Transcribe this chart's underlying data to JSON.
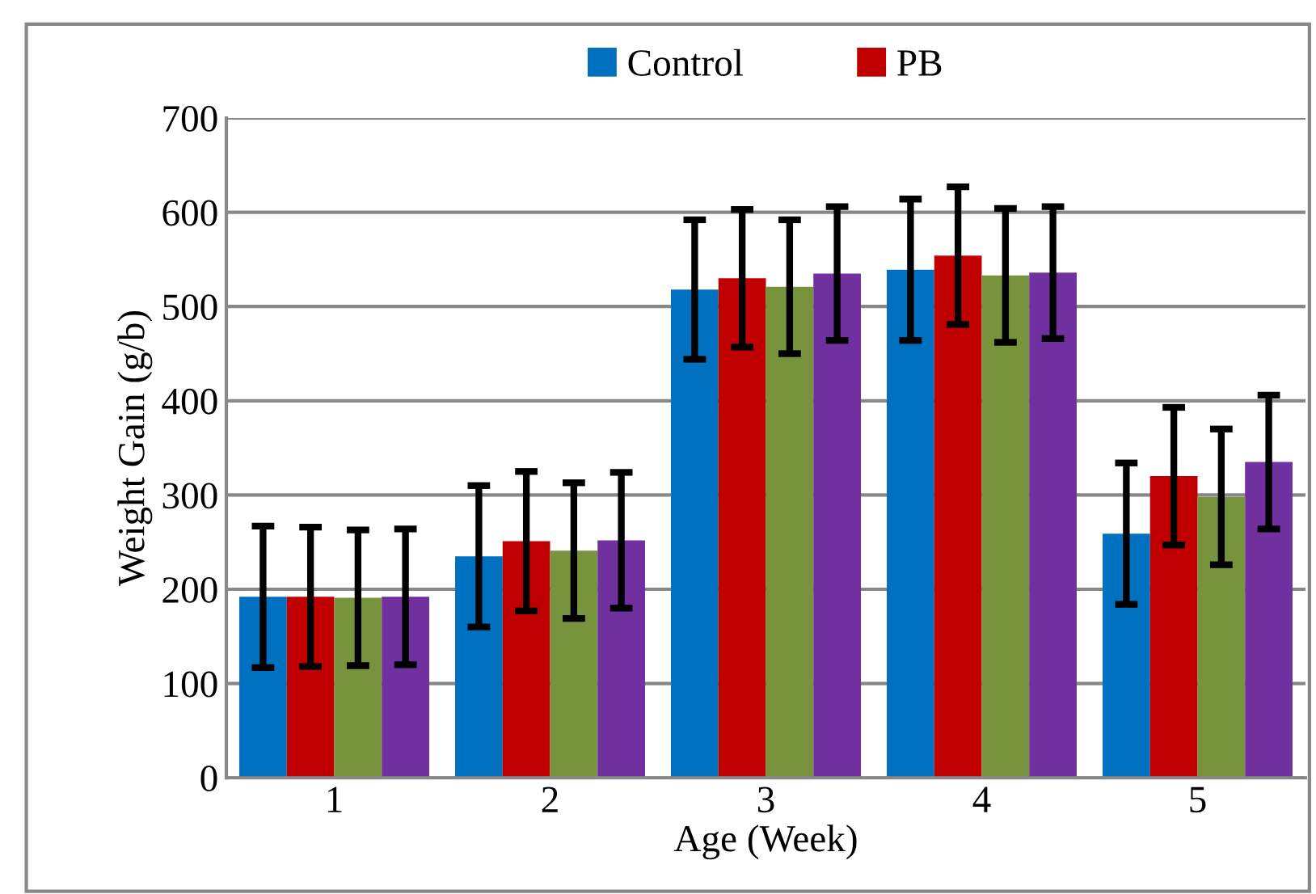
{
  "chart_data": {
    "type": "bar",
    "xlabel": "Age (Week)",
    "ylabel": "Weight Gain (g/b)",
    "categories": [
      "1",
      "2",
      "3",
      "4",
      "5"
    ],
    "series": [
      {
        "name": "Control",
        "color": "#0070c0",
        "values": [
          192,
          235,
          518,
          539,
          259
        ],
        "errors": [
          75,
          75,
          74,
          75,
          75
        ]
      },
      {
        "name": "PB",
        "color": "#c00000",
        "values": [
          192,
          251,
          530,
          554,
          320
        ],
        "errors": [
          74,
          74,
          73,
          73,
          73
        ]
      },
      {
        "color": "#77933c",
        "values": [
          191,
          241,
          521,
          533,
          298
        ],
        "errors": [
          72,
          72,
          71,
          71,
          72
        ]
      },
      {
        "color": "#7030a0",
        "values": [
          192,
          252,
          535,
          536,
          335
        ],
        "errors": [
          72,
          72,
          71,
          70,
          71
        ]
      }
    ],
    "ylim": [
      0,
      700
    ],
    "yticks": [
      0,
      100,
      200,
      300,
      400,
      500,
      600,
      700
    ],
    "grid": "y",
    "legend": "top"
  }
}
